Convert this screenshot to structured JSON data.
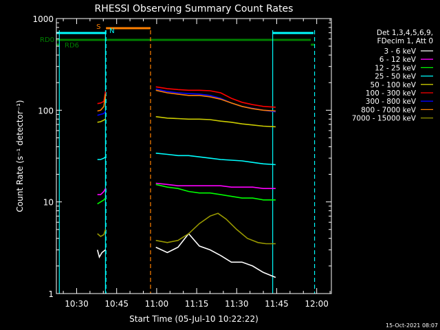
{
  "chart_data": {
    "type": "line",
    "title": "RHESSI Observing Summary Count Rates",
    "xlabel": "Start Time (05-Jul-10 10:22:22)",
    "ylabel": "Count Rate (s⁻¹ detector⁻¹)",
    "yscale": "log",
    "ylim": [
      1,
      1000
    ],
    "xlim_minutes": [
      622.4,
      725.5
    ],
    "x_ticks": [
      "10:30",
      "10:45",
      "11:00",
      "11:15",
      "11:30",
      "11:45",
      "12:00"
    ],
    "x_tick_minutes": [
      630,
      645,
      660,
      675,
      690,
      705,
      720
    ],
    "y_ticks": [
      "1",
      "10",
      "100",
      "1000"
    ],
    "y_tick_values": [
      1,
      10,
      100,
      1000
    ],
    "legend_header": [
      "Det 1,3,4,5,6,9,",
      "FDecim 1, Att 0"
    ],
    "legend_position": "right",
    "series": [
      {
        "name": "3 - 6 keV",
        "color": "#ffffff",
        "segments": [
          [
            [
              637.8,
              3
            ],
            [
              638.5,
              2.5
            ],
            [
              639.5,
              2.8
            ],
            [
              640.8,
              3
            ]
          ],
          [
            [
              659.7,
              3.2
            ],
            [
              664,
              2.8
            ],
            [
              668,
              3.2
            ],
            [
              672,
              4.5
            ],
            [
              676,
              3.3
            ],
            [
              680,
              3
            ],
            [
              684,
              2.6
            ],
            [
              688,
              2.2
            ],
            [
              692,
              2.2
            ],
            [
              696,
              2
            ],
            [
              700,
              1.7
            ],
            [
              704.6,
              1.5
            ]
          ]
        ]
      },
      {
        "name": "6 - 12 keV",
        "color": "#ff00ff",
        "segments": [
          [
            [
              637.8,
              12
            ],
            [
              639,
              12
            ],
            [
              640.2,
              13
            ],
            [
              640.8,
              14
            ]
          ],
          [
            [
              659.7,
              16
            ],
            [
              664,
              15.5
            ],
            [
              668,
              15
            ],
            [
              672,
              15
            ],
            [
              676,
              15
            ],
            [
              680,
              15
            ],
            [
              684,
              15
            ],
            [
              688,
              14.5
            ],
            [
              692,
              14.5
            ],
            [
              696,
              14.5
            ],
            [
              700,
              14
            ],
            [
              704.6,
              14
            ]
          ]
        ]
      },
      {
        "name": "12 - 25 keV",
        "color": "#00ff00",
        "segments": [
          [
            [
              637.8,
              9.5
            ],
            [
              639,
              10
            ],
            [
              640.2,
              10.5
            ],
            [
              640.8,
              11
            ]
          ],
          [
            [
              659.7,
              15.5
            ],
            [
              664,
              14.5
            ],
            [
              668,
              14
            ],
            [
              672,
              13
            ],
            [
              676,
              12.5
            ],
            [
              680,
              12.5
            ],
            [
              684,
              12
            ],
            [
              688,
              11.5
            ],
            [
              692,
              11
            ],
            [
              696,
              11
            ],
            [
              700,
              10.5
            ],
            [
              704.6,
              10.5
            ]
          ]
        ]
      },
      {
        "name": "25 - 50 keV",
        "color": "#00ffff",
        "segments": [
          [
            [
              637.8,
              29
            ],
            [
              639,
              29
            ],
            [
              640.2,
              30
            ],
            [
              640.8,
              31
            ]
          ],
          [
            [
              659.7,
              34
            ],
            [
              664,
              33
            ],
            [
              668,
              32
            ],
            [
              672,
              32
            ],
            [
              676,
              31
            ],
            [
              680,
              30
            ],
            [
              684,
              29
            ],
            [
              688,
              28.5
            ],
            [
              692,
              28
            ],
            [
              696,
              27
            ],
            [
              700,
              26
            ],
            [
              704.6,
              25.5
            ]
          ]
        ]
      },
      {
        "name": "50 - 100 keV",
        "color": "#cccc00",
        "segments": [
          [
            [
              637.8,
              74
            ],
            [
              639,
              75
            ],
            [
              640.2,
              78
            ],
            [
              640.8,
              80
            ]
          ],
          [
            [
              659.7,
              85
            ],
            [
              664,
              82
            ],
            [
              668,
              81
            ],
            [
              672,
              80
            ],
            [
              676,
              80
            ],
            [
              680,
              79
            ],
            [
              684,
              76
            ],
            [
              688,
              74
            ],
            [
              692,
              71
            ],
            [
              696,
              69
            ],
            [
              700,
              67
            ],
            [
              704.6,
              66
            ]
          ]
        ]
      },
      {
        "name": "100 - 300 keV",
        "color": "#ff0000",
        "segments": [
          [
            [
              637.8,
              118
            ],
            [
              639,
              120
            ],
            [
              640.2,
              125
            ],
            [
              640.8,
              160
            ]
          ],
          [
            [
              659.7,
              180
            ],
            [
              664,
              172
            ],
            [
              668,
              168
            ],
            [
              672,
              165
            ],
            [
              676,
              165
            ],
            [
              680,
              163
            ],
            [
              684,
              155
            ],
            [
              688,
              135
            ],
            [
              692,
              122
            ],
            [
              696,
              115
            ],
            [
              700,
              110
            ],
            [
              704.6,
              108
            ]
          ]
        ]
      },
      {
        "name": "300 - 800 keV",
        "color": "#0000ff",
        "segments": [
          [
            [
              637.8,
              88
            ],
            [
              639,
              90
            ],
            [
              640.2,
              92
            ],
            [
              640.8,
              98
            ]
          ],
          [
            [
              659.7,
              170
            ],
            [
              664,
              160
            ],
            [
              668,
              155
            ],
            [
              672,
              152
            ],
            [
              676,
              150
            ],
            [
              680,
              145
            ],
            [
              684,
              135
            ],
            [
              688,
              120
            ],
            [
              692,
              110
            ],
            [
              696,
              105
            ],
            [
              700,
              100
            ],
            [
              704.6,
              96
            ]
          ]
        ]
      },
      {
        "name": "800 - 7000 keV",
        "color": "#ff8000",
        "segments": [
          [
            [
              637.8,
              98
            ],
            [
              639,
              100
            ],
            [
              640.2,
              110
            ],
            [
              640.8,
              150
            ]
          ],
          [
            [
              659.7,
              165
            ],
            [
              664,
              155
            ],
            [
              668,
              150
            ],
            [
              672,
              145
            ],
            [
              676,
              145
            ],
            [
              680,
              140
            ],
            [
              684,
              132
            ],
            [
              688,
              120
            ],
            [
              692,
              110
            ],
            [
              696,
              104
            ],
            [
              700,
              100
            ],
            [
              704.6,
              98
            ]
          ]
        ]
      },
      {
        "name": "7000 - 15000 keV",
        "color": "#999900",
        "segments": [
          [
            [
              637.8,
              4.5
            ],
            [
              639,
              4.2
            ],
            [
              640.2,
              4.4
            ],
            [
              640.8,
              5
            ]
          ],
          [
            [
              659.7,
              3.8
            ],
            [
              664,
              3.6
            ],
            [
              668,
              3.8
            ],
            [
              672,
              4.5
            ],
            [
              676,
              5.8
            ],
            [
              680,
              7
            ],
            [
              683,
              7.5
            ],
            [
              686,
              6.5
            ],
            [
              690,
              5
            ],
            [
              694,
              4
            ],
            [
              698,
              3.6
            ],
            [
              701,
              3.5
            ],
            [
              704.6,
              3.5
            ]
          ]
        ]
      }
    ],
    "flags": [
      {
        "name": "S",
        "color": "#ff8000",
        "x_start": 641.0,
        "x_end": 657.7
      },
      {
        "name": "N",
        "color": "#00ffff",
        "x_start": 641.0,
        "x_end": 641.0
      },
      {
        "name": "",
        "color": "#00ffff",
        "x_start": 622.4,
        "x_end": 641.0
      },
      {
        "name": "",
        "color": "#00ffff",
        "x_start": 703.5,
        "x_end": 718.8
      },
      {
        "name": "RD0",
        "color": "#008000",
        "x_start": 622.4,
        "x_end": 717.8
      },
      {
        "name": "RD6",
        "color": "#008000",
        "x_start": 622.4,
        "x_end": 623.5
      },
      {
        "name": "",
        "color": "#008000",
        "x_start": 717.8,
        "x_end": 719.2
      }
    ],
    "vlines": [
      {
        "x": 623.5,
        "color": "#00ffff",
        "dash": false
      },
      {
        "x": 640.8,
        "color": "#00ffff",
        "dash": false
      },
      {
        "x": 641.0,
        "color": "#00ffff",
        "dash": true
      },
      {
        "x": 657.7,
        "color": "#ff8000",
        "dash": true
      },
      {
        "x": 703.5,
        "color": "#00ffff",
        "dash": false
      },
      {
        "x": 719.2,
        "color": "#00ffff",
        "dash": true
      }
    ],
    "footer_timestamp": "15-Oct-2021 08:07"
  }
}
